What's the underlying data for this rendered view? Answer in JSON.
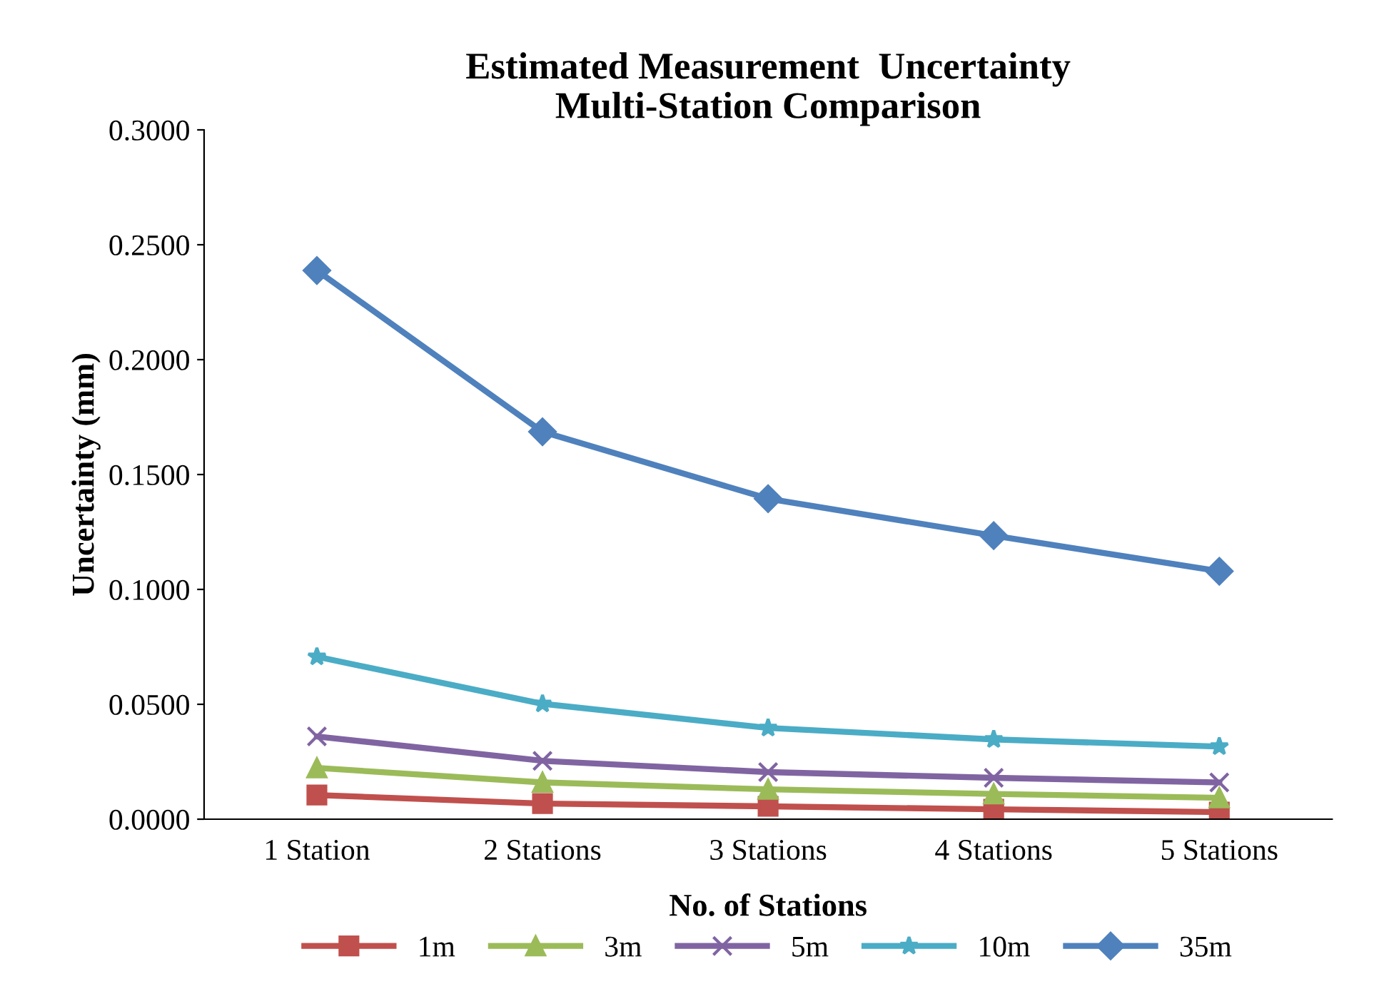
{
  "chart_data": {
    "type": "line",
    "title": "Estimated Measurement  Uncertainty\nMulti-Station Comparison",
    "xlabel": "No. of Stations",
    "ylabel": "Uncertainty (mm)",
    "categories": [
      "1 Station",
      "2 Stations",
      "3 Stations",
      "4 Stations",
      "5 Stations"
    ],
    "series": [
      {
        "name": "1m",
        "color": "#c0504d",
        "marker": "square",
        "values": [
          0.0105,
          0.0068,
          0.0056,
          0.0043,
          0.0031
        ]
      },
      {
        "name": "3m",
        "color": "#9bbb59",
        "marker": "triangle",
        "values": [
          0.0223,
          0.016,
          0.013,
          0.011,
          0.0093
        ]
      },
      {
        "name": "5m",
        "color": "#8064a2",
        "marker": "cross",
        "values": [
          0.036,
          0.0254,
          0.0205,
          0.018,
          0.016
        ]
      },
      {
        "name": "10m",
        "color": "#4bacc6",
        "marker": "star",
        "values": [
          0.0707,
          0.0502,
          0.0397,
          0.0347,
          0.0316
        ]
      },
      {
        "name": "35m",
        "color": "#4f81bd",
        "marker": "diamond",
        "values": [
          0.2388,
          0.1686,
          0.1395,
          0.1234,
          0.1079
        ]
      }
    ],
    "ylim": [
      0,
      0.3
    ],
    "yticks": [
      {
        "value": 0,
        "label": "0.0000"
      },
      {
        "value": 0.05,
        "label": "0.0500"
      },
      {
        "value": 0.1,
        "label": "0.1000"
      },
      {
        "value": 0.15,
        "label": "0.1500"
      },
      {
        "value": 0.2,
        "label": "0.2000"
      },
      {
        "value": 0.25,
        "label": "0.2500"
      },
      {
        "value": 0.3,
        "label": "0.3000"
      }
    ],
    "grid": false,
    "legend": "bottom",
    "line_style": "solid"
  }
}
